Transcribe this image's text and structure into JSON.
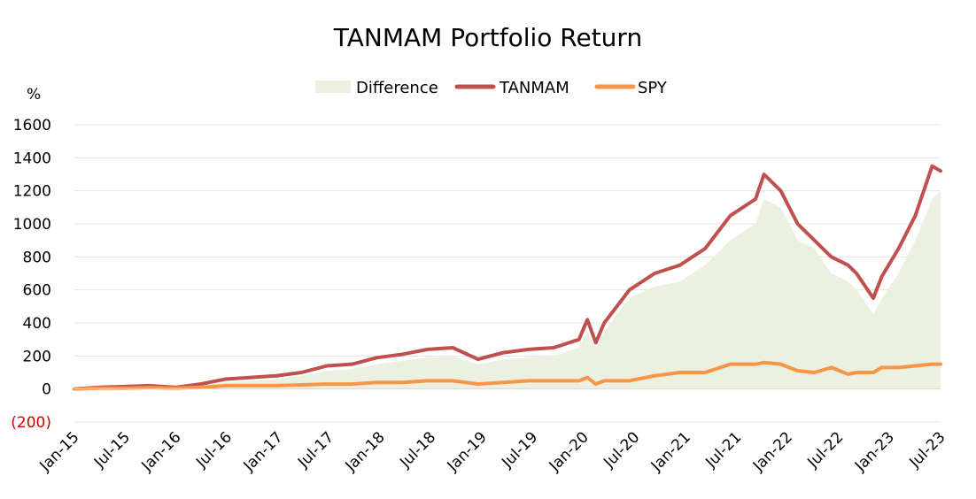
{
  "chart_data": {
    "type": "line",
    "title": "TANMAM Portfolio Return",
    "ylabel": "%",
    "ylim": [
      -200,
      1600
    ],
    "yticks": [
      {
        "value": 1600,
        "label": "1600"
      },
      {
        "value": 1400,
        "label": "1400"
      },
      {
        "value": 1200,
        "label": "1200"
      },
      {
        "value": 1000,
        "label": "1000"
      },
      {
        "value": 800,
        "label": "800"
      },
      {
        "value": 600,
        "label": "600"
      },
      {
        "value": 400,
        "label": "400"
      },
      {
        "value": 200,
        "label": "200"
      },
      {
        "value": 0,
        "label": "0"
      },
      {
        "value": -200,
        "label": "(200)"
      }
    ],
    "xticks": [
      "Jan-15",
      "Jul-15",
      "Jan-16",
      "Jul-16",
      "Jan-17",
      "Jul-17",
      "Jan-18",
      "Jul-18",
      "Jan-19",
      "Jul-19",
      "Jan-20",
      "Jul-20",
      "Jan-21",
      "Jul-21",
      "Jan-22",
      "Jul-22",
      "Jan-23",
      "Jul-23"
    ],
    "grid": true,
    "legend_position": "top",
    "x": [
      "2015-01",
      "2015-04",
      "2015-07",
      "2015-10",
      "2016-01",
      "2016-04",
      "2016-07",
      "2016-10",
      "2017-01",
      "2017-04",
      "2017-07",
      "2017-10",
      "2018-01",
      "2018-04",
      "2018-07",
      "2018-10",
      "2019-01",
      "2019-04",
      "2019-07",
      "2019-10",
      "2020-01",
      "2020-02",
      "2020-03",
      "2020-04",
      "2020-07",
      "2020-10",
      "2021-01",
      "2021-04",
      "2021-07",
      "2021-10",
      "2021-11",
      "2022-01",
      "2022-03",
      "2022-05",
      "2022-07",
      "2022-09",
      "2022-10",
      "2022-12",
      "2023-01",
      "2023-03",
      "2023-05",
      "2023-07",
      "2023-08"
    ],
    "series": [
      {
        "name": "Difference",
        "kind": "area",
        "color": "#ebf0e0",
        "values": [
          0,
          5,
          10,
          12,
          5,
          20,
          40,
          50,
          60,
          80,
          110,
          120,
          150,
          170,
          190,
          200,
          150,
          180,
          190,
          200,
          250,
          350,
          250,
          350,
          550,
          620,
          650,
          750,
          900,
          1000,
          1150,
          1100,
          900,
          850,
          700,
          650,
          600,
          450,
          550,
          700,
          900,
          1150,
          1200
        ]
      },
      {
        "name": "TANMAM",
        "kind": "line",
        "color": "#c0504d",
        "values": [
          0,
          10,
          15,
          20,
          10,
          30,
          60,
          70,
          80,
          100,
          140,
          150,
          190,
          210,
          240,
          250,
          180,
          220,
          240,
          250,
          300,
          420,
          280,
          400,
          600,
          700,
          750,
          850,
          1050,
          1150,
          1300,
          1200,
          1000,
          900,
          800,
          750,
          700,
          550,
          680,
          850,
          1050,
          1350,
          1320
        ]
      },
      {
        "name": "SPY",
        "kind": "line",
        "color": "#f79646",
        "values": [
          0,
          5,
          5,
          8,
          5,
          10,
          20,
          20,
          20,
          25,
          30,
          30,
          40,
          40,
          50,
          50,
          30,
          40,
          50,
          50,
          50,
          70,
          30,
          50,
          50,
          80,
          100,
          100,
          150,
          150,
          160,
          150,
          110,
          100,
          130,
          90,
          100,
          100,
          130,
          130,
          140,
          150,
          150
        ]
      }
    ]
  }
}
